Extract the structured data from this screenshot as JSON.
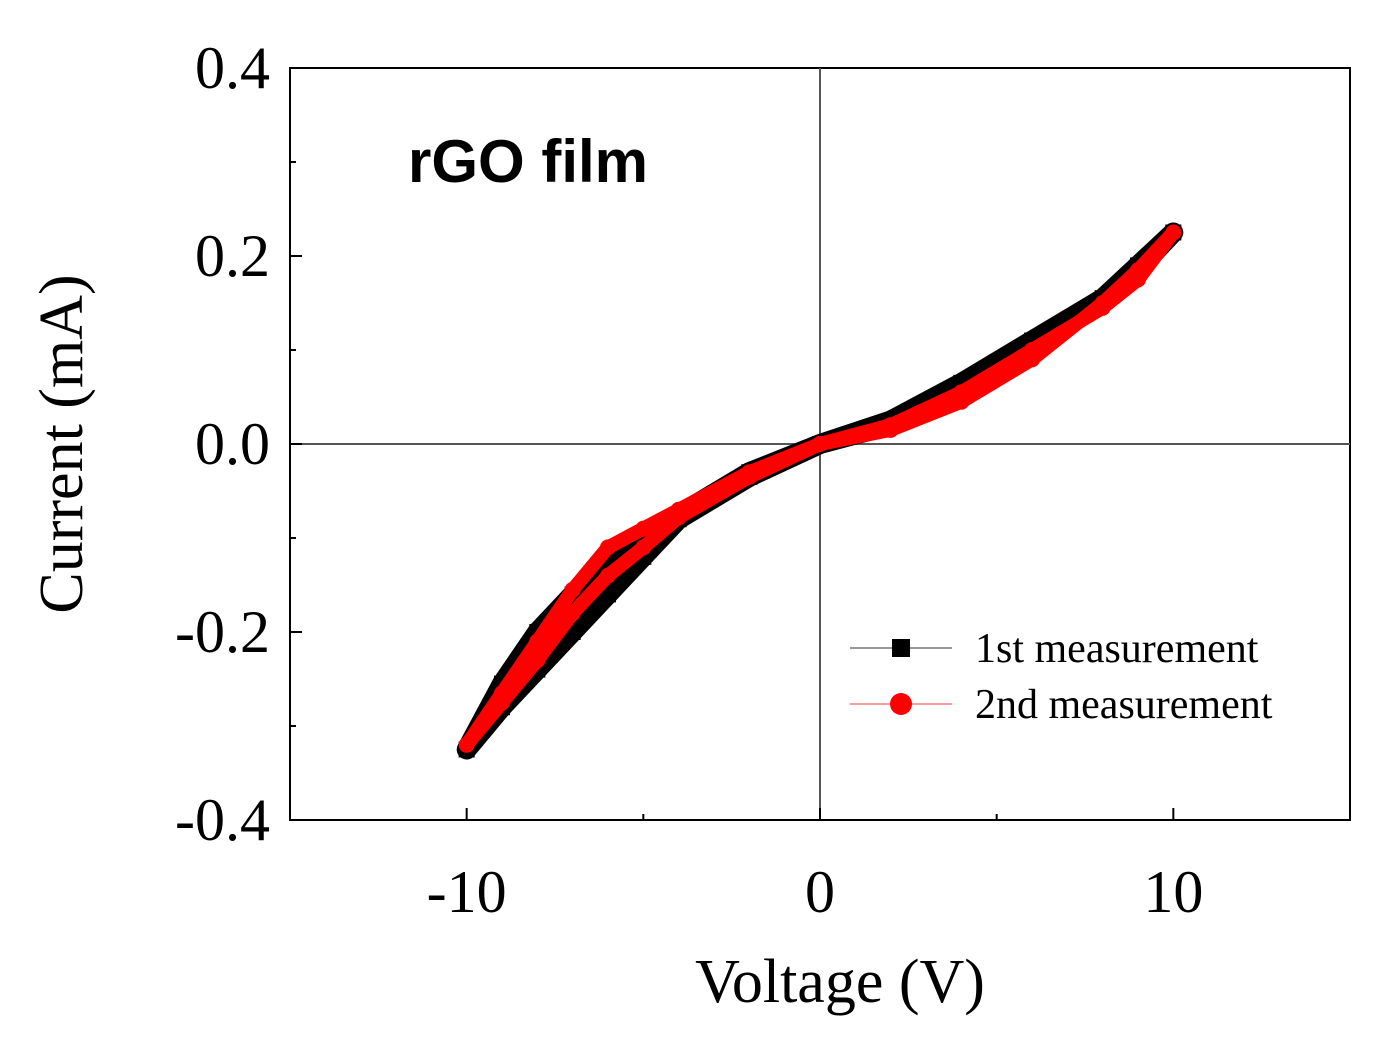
{
  "chart_data": {
    "type": "line",
    "title": "",
    "annotation": "rGO film",
    "xlabel": "Voltage (V)",
    "ylabel": "Current (mA)",
    "xlim": [
      -15,
      15
    ],
    "ylim": [
      -0.4,
      0.4
    ],
    "x_ticks": [
      -10,
      0,
      10
    ],
    "x_tick_labels": [
      "-10",
      "0",
      "10"
    ],
    "y_ticks": [
      -0.4,
      -0.2,
      0.0,
      0.2,
      0.4
    ],
    "y_tick_labels": [
      "-0.4",
      "-0.2",
      "0.0",
      "0.2",
      "0.4"
    ],
    "legend_position": "lower-right",
    "series": [
      {
        "name": "1st measurement",
        "color": "#000000",
        "marker": "square",
        "x": [
          0,
          2,
          4,
          6,
          8,
          9,
          10,
          9,
          8,
          6,
          4,
          2,
          0,
          -2,
          -4,
          -5,
          -6,
          -7,
          -8,
          -9,
          -10,
          -9,
          -8,
          -7,
          -6,
          -5,
          -4,
          -2,
          0
        ],
        "y": [
          0.0,
          0.025,
          0.065,
          0.11,
          0.155,
          0.185,
          0.225,
          0.19,
          0.155,
          0.1,
          0.055,
          0.02,
          0.0,
          -0.035,
          -0.08,
          -0.12,
          -0.16,
          -0.2,
          -0.24,
          -0.28,
          -0.325,
          -0.255,
          -0.2,
          -0.16,
          -0.12,
          -0.1,
          -0.075,
          -0.03,
          0.0
        ]
      },
      {
        "name": "2nd measurement",
        "color": "#ff0000",
        "marker": "circle",
        "x": [
          0,
          2,
          4,
          6,
          8,
          9,
          10,
          9,
          8,
          6,
          4,
          2,
          0,
          -2,
          -4,
          -5,
          -6,
          -7,
          -8,
          -9,
          -10,
          -9,
          -8,
          -7,
          -6,
          -5,
          -4,
          -2,
          0
        ],
        "y": [
          0.0,
          0.02,
          0.055,
          0.1,
          0.145,
          0.175,
          0.225,
          0.185,
          0.15,
          0.09,
          0.045,
          0.015,
          0.0,
          -0.035,
          -0.078,
          -0.11,
          -0.14,
          -0.18,
          -0.23,
          -0.275,
          -0.32,
          -0.265,
          -0.21,
          -0.155,
          -0.11,
          -0.09,
          -0.07,
          -0.03,
          0.0
        ]
      }
    ]
  }
}
